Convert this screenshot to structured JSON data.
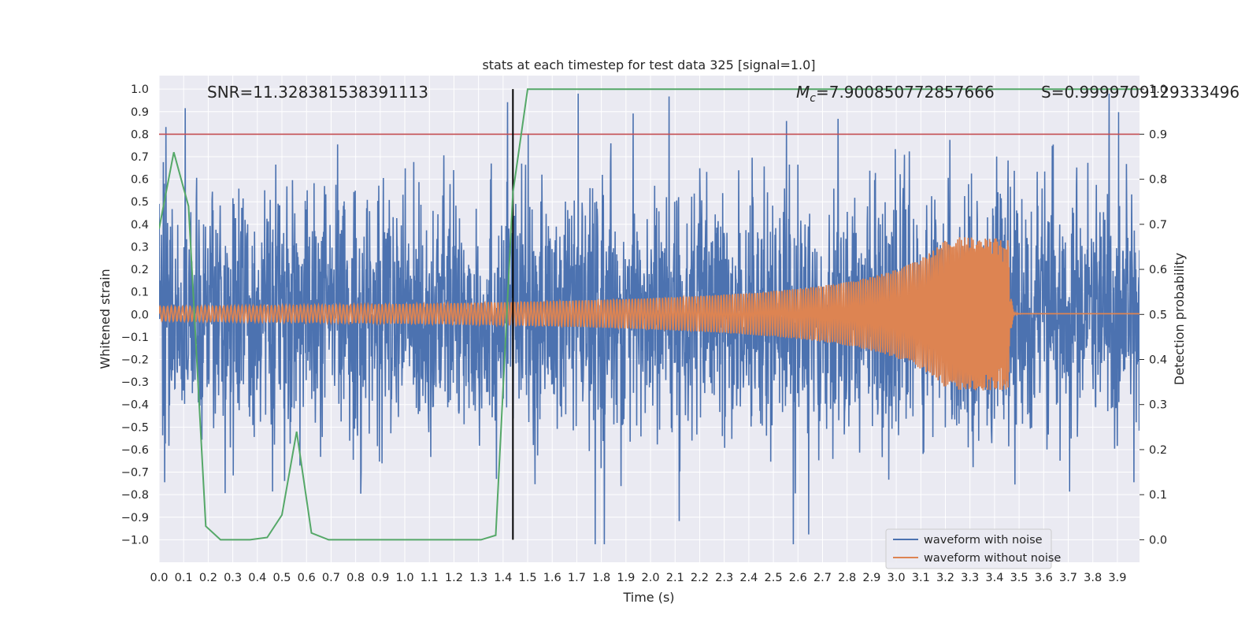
{
  "chart_data": {
    "type": "line",
    "title": "stats at each timestep for test data 325 [signal=1.0]",
    "xlabel": "Time (s)",
    "ylabel": "Whitened strain",
    "y2label": "Detection probability",
    "xlim": [
      0.0,
      3.99
    ],
    "ylim": [
      -1.1,
      1.06
    ],
    "y2lim": [
      -0.05,
      1.03
    ],
    "x_ticks": [
      "0.0",
      "0.1",
      "0.2",
      "0.3",
      "0.4",
      "0.5",
      "0.6",
      "0.7",
      "0.8",
      "0.9",
      "1.0",
      "1.1",
      "1.2",
      "1.3",
      "1.4",
      "1.5",
      "1.6",
      "1.7",
      "1.8",
      "1.9",
      "2.0",
      "2.1",
      "2.2",
      "2.3",
      "2.4",
      "2.5",
      "2.6",
      "2.7",
      "2.8",
      "2.9",
      "3.0",
      "3.1",
      "3.2",
      "3.3",
      "3.4",
      "3.5",
      "3.6",
      "3.7",
      "3.8",
      "3.9"
    ],
    "y_ticks": [
      "1.0",
      "0.9",
      "0.8",
      "0.7",
      "0.6",
      "0.5",
      "0.4",
      "0.3",
      "0.2",
      "0.1",
      "0.0",
      "−0.1",
      "−0.2",
      "−0.3",
      "−0.4",
      "−0.5",
      "−0.6",
      "−0.7",
      "−0.8",
      "−0.9",
      "−1.0"
    ],
    "y2_ticks": [
      "1.0",
      "0.9",
      "0.8",
      "0.7",
      "0.6",
      "0.5",
      "0.4",
      "0.3",
      "0.2",
      "0.1",
      "0.0"
    ],
    "grid": true,
    "legend_position": "lower-right",
    "series": [
      {
        "name": "waveform with noise",
        "color": "#4c72b0",
        "description": "noisy whitened strain, amplitude ~±0.5 with spikes to ~±1.0"
      },
      {
        "name": "waveform without noise",
        "color": "#dd8452",
        "description": "chirp signal, amplitude 0.03 growing to ~0.35 at merger t≈3.45 s, then ringdown"
      },
      {
        "color": "#55a868",
        "axis": "right",
        "x": [
          0.0,
          0.06,
          0.12,
          0.19,
          0.25,
          0.31,
          0.37,
          0.44,
          0.5,
          0.56,
          0.62,
          0.69,
          0.75,
          1.31,
          1.37,
          1.44,
          1.5,
          3.99
        ],
        "y": [
          0.69,
          0.86,
          0.74,
          0.03,
          0.0,
          0.0,
          0.0,
          0.005,
          0.055,
          0.24,
          0.015,
          0.0,
          0.0,
          0.0,
          0.01,
          0.77,
          1.0,
          1.0
        ]
      }
    ],
    "threshold_line": {
      "axis": "right",
      "value": 0.9,
      "color": "#c44e52"
    },
    "vertical_marker": {
      "x": 1.44,
      "color": "#000000"
    },
    "annotations": {
      "snr": "SNR=11.328381538391113",
      "mc_symbol": "M",
      "mc_sub": "c",
      "mc_value": "=7.900850772857666",
      "s": "S=0.9999709129333496"
    },
    "seed": 325
  }
}
